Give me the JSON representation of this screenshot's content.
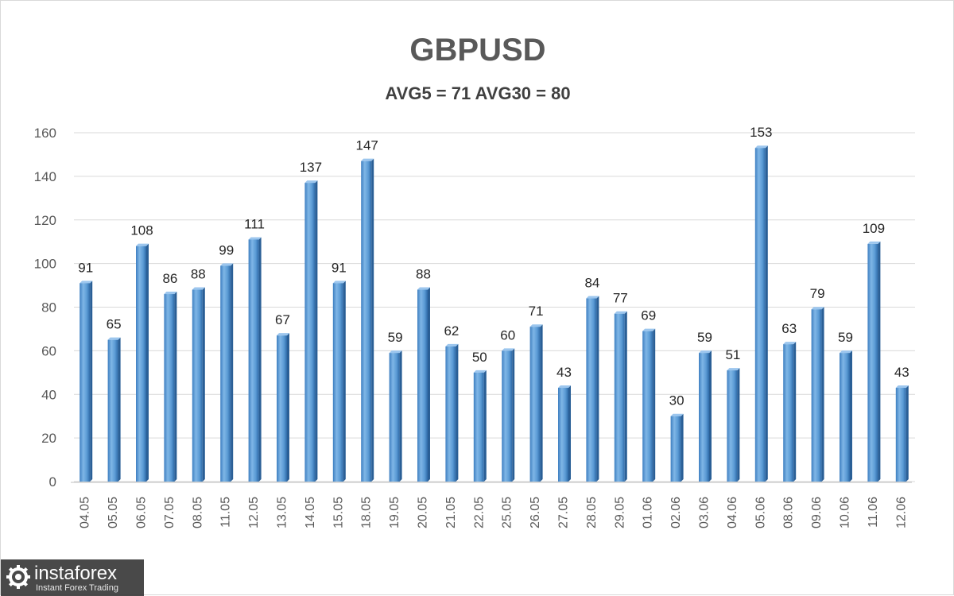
{
  "chart_data": {
    "type": "bar",
    "title": "GBPUSD",
    "subtitle": "AVG5 = 71 AVG30 = 80",
    "categories": [
      "04.05",
      "05.05",
      "06.05",
      "07.05",
      "08.05",
      "11.05",
      "12.05",
      "13.05",
      "14.05",
      "15.05",
      "18.05",
      "19.05",
      "20.05",
      "21.05",
      "22.05",
      "25.05",
      "26.05",
      "27.05",
      "28.05",
      "29.05",
      "01.06",
      "02.06",
      "03.06",
      "04.06",
      "05.06",
      "08.06",
      "09.06",
      "10.06",
      "11.06",
      "12.06"
    ],
    "values": [
      91,
      65,
      108,
      86,
      88,
      99,
      111,
      67,
      137,
      91,
      147,
      59,
      88,
      62,
      50,
      60,
      71,
      43,
      84,
      77,
      69,
      30,
      59,
      51,
      153,
      63,
      79,
      59,
      109,
      43
    ],
    "ylim": [
      0,
      160
    ],
    "yticks": [
      0,
      20,
      40,
      60,
      80,
      100,
      120,
      140,
      160
    ],
    "grid": true,
    "bar_color": "#5b9bd5"
  },
  "watermark": {
    "name": "instaforex",
    "tagline": "Instant Forex Trading"
  }
}
